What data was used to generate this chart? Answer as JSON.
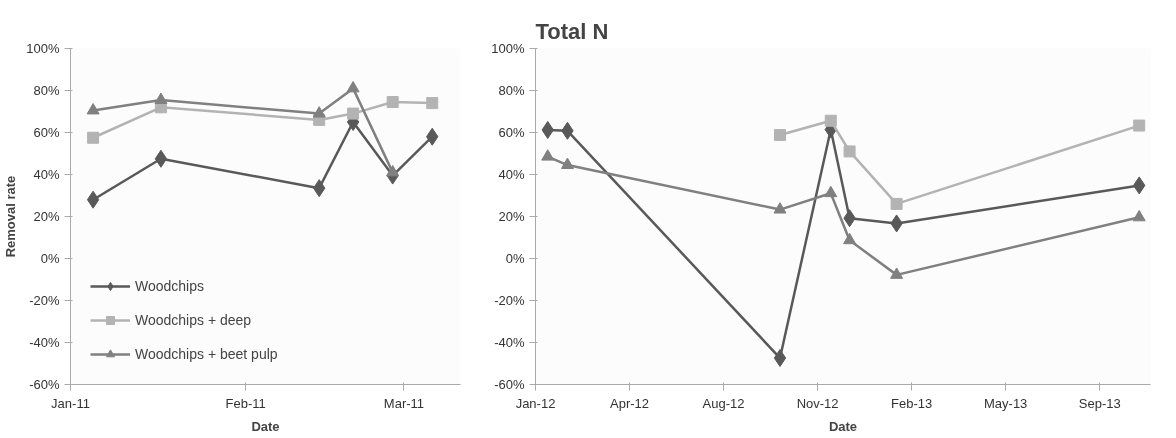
{
  "chart_data": [
    {
      "type": "line",
      "xlabel": "Date",
      "ylabel": "Removal rate",
      "x": [
        "2011-01-05",
        "2011-01-17",
        "2011-02-14",
        "2011-02-20",
        "2011-02-27",
        "2011-03-06"
      ],
      "series": [
        {
          "name": "Woodchips",
          "color": "#595959",
          "marker": "diamond",
          "values": [
            28,
            47.5,
            33.5,
            65,
            39.5,
            58
          ]
        },
        {
          "name": "Woodchips + deep",
          "color": "#b3b3b3",
          "marker": "square",
          "values": [
            57.5,
            72,
            66,
            69,
            74.5,
            74
          ]
        },
        {
          "name": "Woodchips + beet pulp",
          "color": "#808080",
          "marker": "triangle",
          "values": [
            70.5,
            75.5,
            69,
            81,
            41,
            null
          ]
        }
      ],
      "xlim": [
        "2011-01-01",
        "2011-03-11"
      ],
      "xticks": [
        {
          "value": "2011-01-01",
          "label": "Jan-11"
        },
        {
          "value": "2011-02-01",
          "label": "Feb-11"
        },
        {
          "value": "2011-03-01",
          "label": "Mar-11"
        }
      ],
      "ylim": [
        -60,
        100
      ],
      "yticks": [
        {
          "value": -60,
          "label": "-60%"
        },
        {
          "value": -40,
          "label": "-40%"
        },
        {
          "value": -20,
          "label": "-20%"
        },
        {
          "value": 0,
          "label": "0%"
        },
        {
          "value": 20,
          "label": "20%"
        },
        {
          "value": 40,
          "label": "40%"
        },
        {
          "value": 60,
          "label": "60%"
        },
        {
          "value": 80,
          "label": "80%"
        },
        {
          "value": 100,
          "label": "100%"
        }
      ],
      "grid": false,
      "legend": "bottom left"
    },
    {
      "type": "line",
      "title": "Total N",
      "xlabel": "Date",
      "x": [
        "2012-01-28",
        "2012-02-18",
        "2012-10-01",
        "2012-11-24",
        "2012-12-14",
        "2013-02-02",
        "2013-10-18"
      ],
      "series": [
        {
          "color": "#595959",
          "marker": "diamond",
          "values": [
            61.2,
            60.8,
            -47.4,
            61.4,
            19.2,
            16.7,
            34.8
          ]
        },
        {
          "color": "#b3b3b3",
          "marker": "square",
          "values": [
            null,
            null,
            58.8,
            65.6,
            51,
            26,
            63.3
          ]
        },
        {
          "color": "#808080",
          "marker": "triangle",
          "values": [
            48.5,
            44.5,
            23.3,
            31.1,
            8.7,
            -7.8,
            19.6
          ]
        }
      ],
      "xlim": [
        "2012-01-15",
        "2013-10-30"
      ],
      "xticks": [
        {
          "value": "2012-01-15",
          "label": "Jan-12"
        },
        {
          "value": "2012-04-24",
          "label": "Apr-12"
        },
        {
          "value": "2012-08-02",
          "label": "Aug-12"
        },
        {
          "value": "2012-11-10",
          "label": "Nov-12"
        },
        {
          "value": "2013-02-18",
          "label": "Feb-13"
        },
        {
          "value": "2013-05-29",
          "label": "May-13"
        },
        {
          "value": "2013-09-06",
          "label": "Sep-13"
        }
      ],
      "ylim": [
        -60,
        100
      ],
      "yticks": [
        {
          "value": -60,
          "label": "-60%"
        },
        {
          "value": -40,
          "label": "-40%"
        },
        {
          "value": -20,
          "label": "-20%"
        },
        {
          "value": 0,
          "label": "0%"
        },
        {
          "value": 20,
          "label": "20%"
        },
        {
          "value": 40,
          "label": "40%"
        },
        {
          "value": 60,
          "label": "60%"
        },
        {
          "value": 80,
          "label": "80%"
        },
        {
          "value": 100,
          "label": "100%"
        }
      ],
      "grid": false
    }
  ]
}
